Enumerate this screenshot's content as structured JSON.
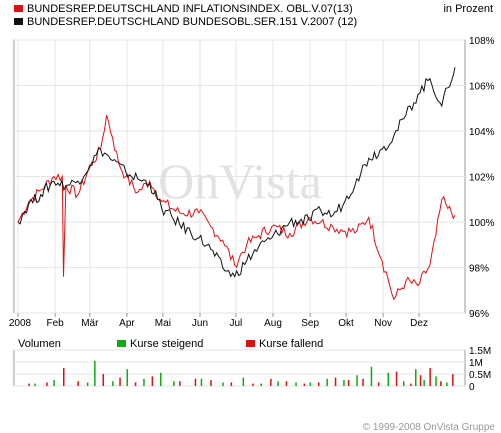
{
  "header": {
    "series1_label": "BUNDESREP.DEUTSCHLAND INFLATIONSINDEX. OBL.V.07(13)",
    "series2_label": "BUNDESREP.DEUTSCHLAND BUNDESOBL.SER.151 V.2007 (12)",
    "unit_label": "in Prozent",
    "series1_color": "#dd1111",
    "series2_color": "#111111"
  },
  "watermark": "OnVista",
  "volume": {
    "label": "Volumen",
    "up_label": "Kurse steigend",
    "down_label": "Kurse fallend",
    "up_color": "#11aa11",
    "down_color": "#dd1111"
  },
  "copyright": "© 1999-2008 OnVista Gruppe",
  "chart_data": [
    {
      "type": "line",
      "title": "",
      "ylabel": "in Prozent",
      "x_tick_labels": [
        "2008",
        "Feb",
        "Mär",
        "Apr",
        "Mai",
        "Jun",
        "Jul",
        "Aug",
        "Sep",
        "Okt",
        "Nov",
        "Dez"
      ],
      "y_tick_labels": [
        "96%",
        "98%",
        "100%",
        "102%",
        "104%",
        "106%",
        "108%"
      ],
      "ylim": [
        96,
        108
      ],
      "grid": true,
      "series": [
        {
          "name": "BUNDESREP.DEUTSCHLAND INFLATIONSINDEX. OBL.V.07(13)",
          "color": "#dd1111",
          "x": [
            "2008-01-01",
            "2008-01-10",
            "2008-01-20",
            "2008-01-31",
            "2008-02-07",
            "2008-02-08",
            "2008-02-10",
            "2008-02-20",
            "2008-03-01",
            "2008-03-10",
            "2008-03-15",
            "2008-03-20",
            "2008-03-25",
            "2008-03-31",
            "2008-04-10",
            "2008-04-20",
            "2008-04-30",
            "2008-05-15",
            "2008-05-31",
            "2008-06-10",
            "2008-06-20",
            "2008-06-30",
            "2008-07-10",
            "2008-07-20",
            "2008-07-31",
            "2008-08-15",
            "2008-08-31",
            "2008-09-10",
            "2008-09-20",
            "2008-09-30",
            "2008-10-10",
            "2008-10-20",
            "2008-10-31",
            "2008-11-05",
            "2008-11-10",
            "2008-11-20",
            "2008-11-30",
            "2008-12-10",
            "2008-12-15",
            "2008-12-20",
            "2008-12-25",
            "2008-12-31"
          ],
          "values": [
            100.0,
            100.9,
            101.4,
            102.0,
            102.0,
            97.6,
            101.6,
            101.2,
            102.4,
            103.2,
            104.7,
            103.7,
            102.6,
            102.0,
            101.3,
            101.8,
            100.9,
            100.4,
            100.4,
            99.8,
            99.2,
            98.1,
            99.0,
            99.4,
            99.8,
            99.5,
            100.2,
            100.0,
            99.8,
            99.6,
            99.6,
            100.2,
            98.3,
            97.5,
            96.6,
            97.4,
            97.2,
            98.1,
            99.4,
            101.0,
            100.6,
            100.3
          ]
        },
        {
          "name": "BUNDESREP.DEUTSCHLAND BUNDESOBL.SER.151 V.2007 (12)",
          "color": "#111111",
          "x": [
            "2008-01-01",
            "2008-01-10",
            "2008-01-20",
            "2008-01-31",
            "2008-02-10",
            "2008-02-20",
            "2008-03-01",
            "2008-03-10",
            "2008-03-20",
            "2008-03-31",
            "2008-04-10",
            "2008-04-20",
            "2008-04-30",
            "2008-05-15",
            "2008-05-31",
            "2008-06-10",
            "2008-06-20",
            "2008-06-30",
            "2008-07-10",
            "2008-07-20",
            "2008-07-31",
            "2008-08-15",
            "2008-08-31",
            "2008-09-10",
            "2008-09-20",
            "2008-09-30",
            "2008-10-10",
            "2008-10-20",
            "2008-10-31",
            "2008-11-10",
            "2008-11-20",
            "2008-11-30",
            "2008-12-10",
            "2008-12-20",
            "2008-12-25",
            "2008-12-31"
          ],
          "values": [
            100.0,
            100.8,
            101.2,
            101.8,
            101.6,
            101.8,
            102.5,
            103.2,
            102.7,
            102.2,
            101.9,
            101.7,
            100.6,
            99.9,
            99.3,
            98.8,
            98.0,
            97.6,
            98.3,
            98.9,
            99.3,
            100.0,
            100.1,
            100.5,
            100.3,
            100.9,
            101.9,
            102.8,
            103.2,
            103.8,
            104.7,
            105.6,
            106.3,
            105.1,
            105.9,
            106.8
          ]
        }
      ]
    },
    {
      "type": "bar",
      "title": "Volumen",
      "y_tick_labels": [
        "0",
        "0.5M",
        "1M",
        "1.5M"
      ],
      "ylim": [
        0,
        1.5
      ],
      "unit": "Millionen",
      "series": [
        {
          "name": "Kurse steigend",
          "color": "#11aa11",
          "x": [
            "2008-01-15",
            "2008-01-31",
            "2008-02-28",
            "2008-03-05",
            "2008-03-20",
            "2008-04-01",
            "2008-04-15",
            "2008-04-29",
            "2008-05-10",
            "2008-06-02",
            "2008-06-20",
            "2008-07-07",
            "2008-07-22",
            "2008-08-05",
            "2008-08-20",
            "2008-09-01",
            "2008-09-15",
            "2008-09-29",
            "2008-10-10",
            "2008-10-22",
            "2008-11-05",
            "2008-11-18",
            "2008-11-28",
            "2008-12-05",
            "2008-12-15",
            "2008-12-24"
          ],
          "values": [
            0.1,
            0.25,
            0.15,
            1.05,
            0.2,
            0.7,
            0.3,
            0.55,
            0.2,
            0.3,
            0.15,
            0.35,
            0.1,
            0.2,
            0.15,
            0.15,
            0.3,
            0.25,
            0.45,
            0.8,
            0.55,
            0.2,
            0.7,
            0.25,
            0.4,
            0.15
          ]
        },
        {
          "name": "Kurse fallend",
          "color": "#dd1111",
          "x": [
            "2008-01-10",
            "2008-01-25",
            "2008-02-08",
            "2008-02-20",
            "2008-03-12",
            "2008-03-26",
            "2008-04-08",
            "2008-04-22",
            "2008-05-15",
            "2008-05-28",
            "2008-06-10",
            "2008-06-27",
            "2008-07-15",
            "2008-07-30",
            "2008-08-12",
            "2008-08-27",
            "2008-09-08",
            "2008-09-22",
            "2008-10-03",
            "2008-10-15",
            "2008-10-28",
            "2008-11-12",
            "2008-11-24",
            "2008-12-02",
            "2008-12-10",
            "2008-12-19",
            "2008-12-29"
          ],
          "values": [
            0.1,
            0.15,
            0.75,
            0.2,
            0.5,
            0.35,
            0.15,
            0.4,
            0.2,
            0.3,
            0.25,
            0.15,
            0.1,
            0.3,
            0.2,
            0.1,
            0.15,
            0.35,
            0.25,
            0.3,
            0.15,
            0.6,
            0.1,
            0.45,
            0.75,
            0.2,
            0.5
          ]
        }
      ]
    }
  ]
}
